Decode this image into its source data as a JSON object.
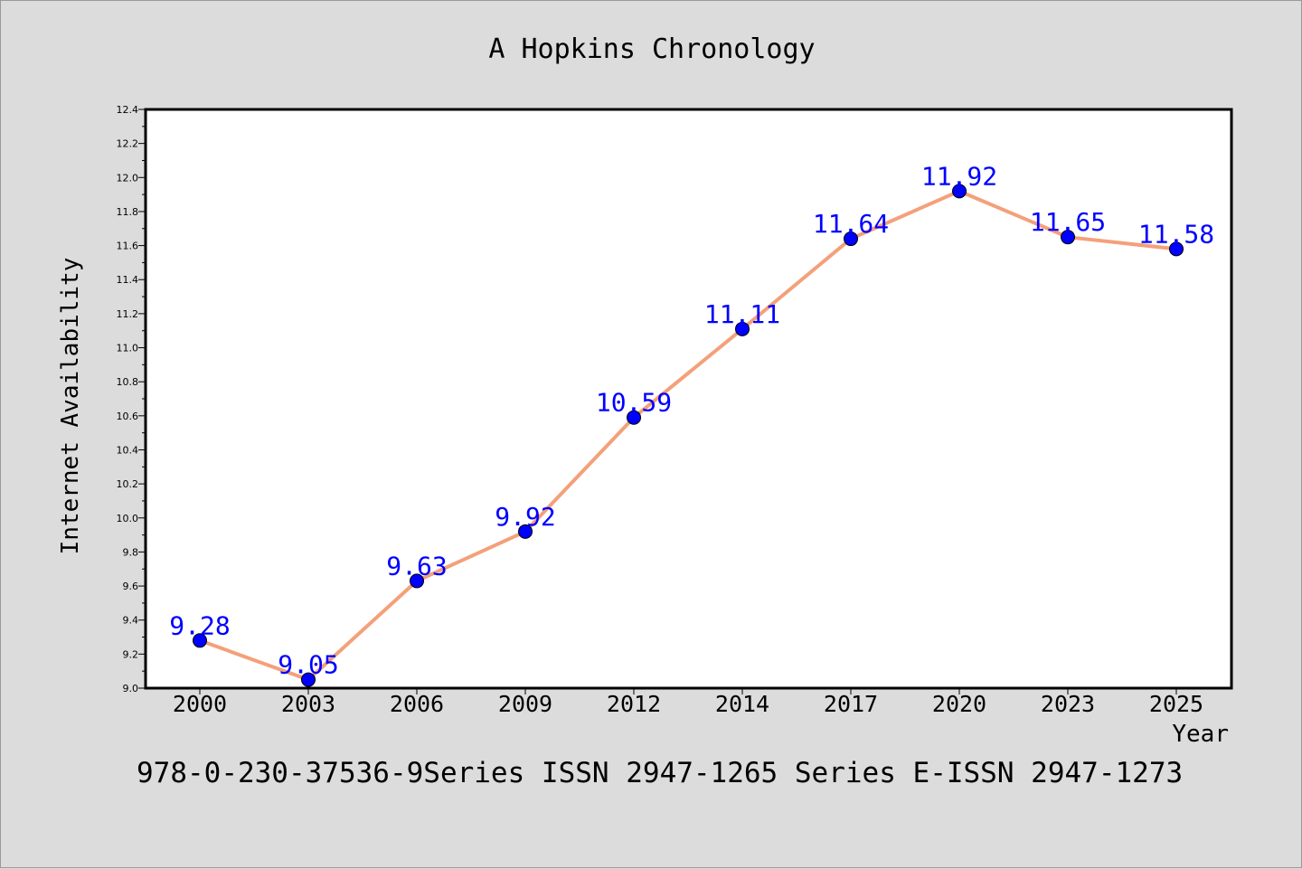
{
  "chart_data": {
    "type": "line",
    "title": "A Hopkins Chronology",
    "xlabel": "Year",
    "ylabel": "Internet Availability",
    "categories": [
      "2000",
      "2003",
      "2006",
      "2009",
      "2012",
      "2014",
      "2017",
      "2020",
      "2023",
      "2025"
    ],
    "series": [
      {
        "values": [
          9.28,
          9.05,
          9.63,
          9.92,
          10.59,
          11.11,
          11.64,
          11.92,
          11.65,
          11.58
        ],
        "labels": [
          "9.28",
          "9.05",
          "9.63",
          "9.92",
          "10.59",
          "11.11",
          "11.64",
          "11.92",
          "11.65",
          "11.58"
        ]
      }
    ],
    "ylim": [
      9.0,
      12.4
    ],
    "yticks": [
      "9.0",
      "9.2",
      "9.4",
      "9.6",
      "9.8",
      "10.0",
      "10.2",
      "10.4",
      "10.6",
      "10.8",
      "11.0",
      "11.2",
      "11.4",
      "11.6",
      "11.8",
      "12.0",
      "12.2",
      "12.4"
    ],
    "grid": false,
    "line_color": "#f4a07a",
    "marker_color": "#0000ff",
    "label_color": "#0000ff",
    "background": "#dcdcdc",
    "plot_background": "#ffffff"
  },
  "footer_text": "978-0-230-37536-9Series ISSN 2947-1265 Series E-ISSN 2947-1273"
}
